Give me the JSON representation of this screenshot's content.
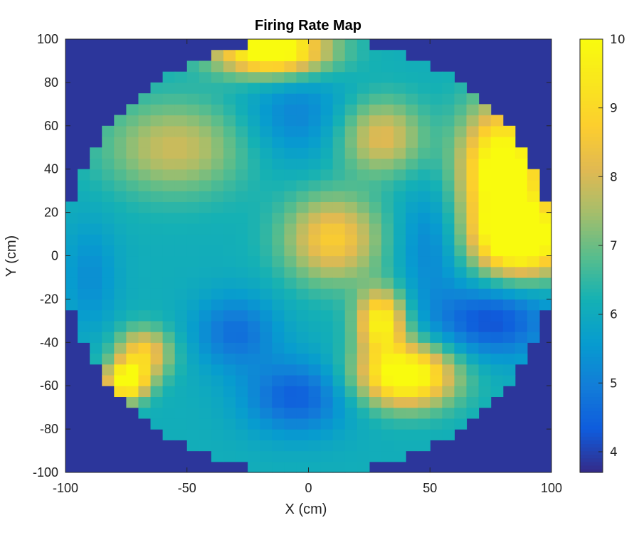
{
  "chart_data": {
    "type": "heatmap",
    "title": "Firing Rate Map",
    "xlabel": "X (cm)",
    "ylabel": "Y (cm)",
    "xlim": [
      -100,
      100
    ],
    "ylim": [
      -100,
      100
    ],
    "xticks": [
      -100,
      -50,
      0,
      50,
      100
    ],
    "yticks": [
      -100,
      -80,
      -60,
      -40,
      -20,
      0,
      20,
      40,
      60,
      80,
      100
    ],
    "colorbar": {
      "min": 3.7,
      "max": 10,
      "ticks": [
        4,
        5,
        6,
        7,
        8,
        9,
        10
      ]
    },
    "colormap": "parula",
    "outside_arena_value": 3.85,
    "arena": {
      "shape": "circle",
      "center": [
        0,
        0
      ],
      "radius": 100
    },
    "grid": false,
    "baseline_rate": 6.1,
    "firing_fields": [
      {
        "x": -15,
        "y": 95,
        "peak_rate": 10.0,
        "sx": 16,
        "sy": 8
      },
      {
        "x": 80,
        "y": 40,
        "peak_rate": 10.0,
        "sx": 12,
        "sy": 20
      },
      {
        "x": 88,
        "y": 8,
        "peak_rate": 10.0,
        "sx": 14,
        "sy": 12
      },
      {
        "x": 40,
        "y": -55,
        "peak_rate": 9.8,
        "sx": 14,
        "sy": 10
      },
      {
        "x": 30,
        "y": -30,
        "peak_rate": 9.0,
        "sx": 7,
        "sy": 10
      },
      {
        "x": -75,
        "y": -58,
        "peak_rate": 9.6,
        "sx": 6,
        "sy": 6
      },
      {
        "x": -68,
        "y": -45,
        "peak_rate": 8.0,
        "sx": 8,
        "sy": 8
      },
      {
        "x": 10,
        "y": 8,
        "peak_rate": 7.9,
        "sx": 14,
        "sy": 14
      },
      {
        "x": 30,
        "y": 55,
        "peak_rate": 7.4,
        "sx": 12,
        "sy": 12
      },
      {
        "x": -55,
        "y": 50,
        "peak_rate": 7.1,
        "sx": 20,
        "sy": 15
      }
    ],
    "low_regions": [
      {
        "x": -30,
        "y": -35,
        "min_rate": 4.7,
        "sx": 12,
        "sy": 12
      },
      {
        "x": -5,
        "y": -65,
        "min_rate": 4.4,
        "sx": 15,
        "sy": 12
      },
      {
        "x": 75,
        "y": -30,
        "min_rate": 4.2,
        "sx": 18,
        "sy": 12
      },
      {
        "x": -5,
        "y": 65,
        "min_rate": 5.1,
        "sx": 15,
        "sy": 15
      },
      {
        "x": 50,
        "y": 5,
        "min_rate": 5.1,
        "sx": 10,
        "sy": 18
      },
      {
        "x": -90,
        "y": -10,
        "min_rate": 5.3,
        "sx": 8,
        "sy": 18
      }
    ]
  }
}
